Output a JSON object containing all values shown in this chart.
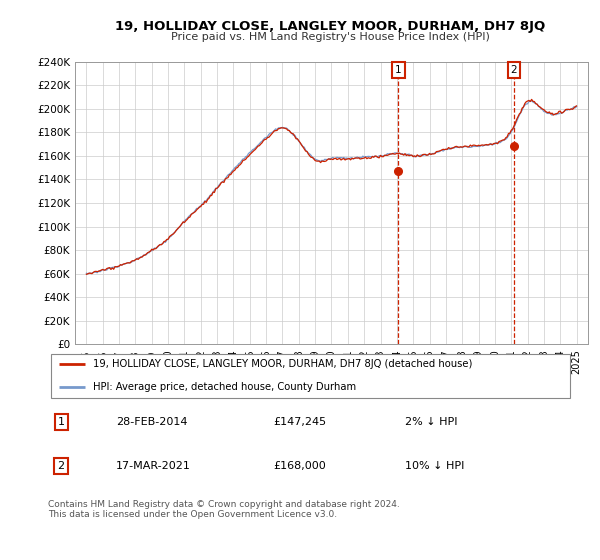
{
  "title": "19, HOLLIDAY CLOSE, LANGLEY MOOR, DURHAM, DH7 8JQ",
  "subtitle": "Price paid vs. HM Land Registry's House Price Index (HPI)",
  "ylim": [
    0,
    240000
  ],
  "yticks": [
    0,
    20000,
    40000,
    60000,
    80000,
    100000,
    120000,
    140000,
    160000,
    180000,
    200000,
    220000,
    240000
  ],
  "ytick_labels": [
    "£0",
    "£20K",
    "£40K",
    "£60K",
    "£80K",
    "£100K",
    "£120K",
    "£140K",
    "£160K",
    "£180K",
    "£200K",
    "£220K",
    "£240K"
  ],
  "hpi_color": "#7799cc",
  "price_color": "#cc2200",
  "marker1_year": 2014.083,
  "marker1_price": 147245,
  "marker1_date": "28-FEB-2014",
  "marker1_pct": "2% ↓ HPI",
  "marker2_year": 2021.167,
  "marker2_price": 168000,
  "marker2_date": "17-MAR-2021",
  "marker2_pct": "10% ↓ HPI",
  "legend_line1": "19, HOLLIDAY CLOSE, LANGLEY MOOR, DURHAM, DH7 8JQ (detached house)",
  "legend_line2": "HPI: Average price, detached house, County Durham",
  "footer": "Contains HM Land Registry data © Crown copyright and database right 2024.\nThis data is licensed under the Open Government Licence v3.0.",
  "background_color": "#ffffff",
  "grid_color": "#cccccc"
}
